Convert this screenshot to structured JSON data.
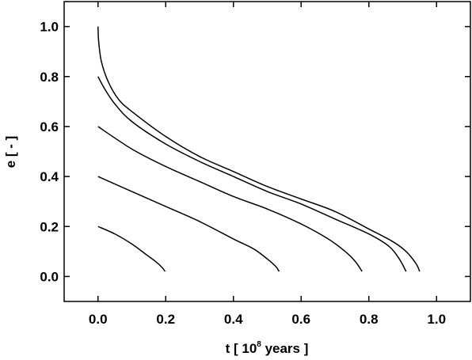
{
  "chart_data": {
    "type": "line",
    "title": "",
    "xlabel": {
      "prefix": "t [ 10",
      "sup": "8",
      "suffix": " years ]"
    },
    "ylabel": "e [ - ]",
    "xlim": [
      -0.1,
      1.1
    ],
    "ylim": [
      -0.1,
      1.1
    ],
    "xticks": [
      0.0,
      0.2,
      0.4,
      0.6,
      0.8,
      1.0
    ],
    "yticks": [
      0.0,
      0.2,
      0.4,
      0.6,
      0.8,
      1.0
    ],
    "xtick_labels": [
      "0.0",
      "0.2",
      "0.4",
      "0.6",
      "0.8",
      "1.0"
    ],
    "ytick_labels": [
      "0.0",
      "0.2",
      "0.4",
      "0.6",
      "0.8",
      "1.0"
    ],
    "grid": false,
    "legend": "none",
    "line_color": "#000000",
    "series": [
      {
        "x": [
          0.0,
          0.05,
          0.1,
          0.14,
          0.17,
          0.19,
          0.198
        ],
        "y": [
          0.2,
          0.17,
          0.13,
          0.09,
          0.06,
          0.035,
          0.02
        ]
      },
      {
        "x": [
          0.0,
          0.1,
          0.2,
          0.3,
          0.4,
          0.46,
          0.5,
          0.525,
          0.535
        ],
        "y": [
          0.4,
          0.34,
          0.28,
          0.22,
          0.15,
          0.11,
          0.07,
          0.04,
          0.02
        ]
      },
      {
        "x": [
          0.0,
          0.1,
          0.2,
          0.3,
          0.4,
          0.5,
          0.6,
          0.68,
          0.73,
          0.76,
          0.78
        ],
        "y": [
          0.6,
          0.51,
          0.44,
          0.38,
          0.32,
          0.27,
          0.21,
          0.15,
          0.1,
          0.06,
          0.02
        ]
      },
      {
        "x": [
          0.0,
          0.02,
          0.05,
          0.1,
          0.2,
          0.3,
          0.4,
          0.5,
          0.6,
          0.7,
          0.8,
          0.86,
          0.89,
          0.91
        ],
        "y": [
          0.8,
          0.75,
          0.69,
          0.62,
          0.53,
          0.46,
          0.4,
          0.34,
          0.29,
          0.23,
          0.17,
          0.12,
          0.07,
          0.02
        ]
      },
      {
        "x": [
          0.0,
          0.002,
          0.01,
          0.03,
          0.06,
          0.1,
          0.2,
          0.3,
          0.4,
          0.5,
          0.6,
          0.7,
          0.8,
          0.87,
          0.91,
          0.94,
          0.95
        ],
        "y": [
          1.0,
          0.94,
          0.86,
          0.78,
          0.71,
          0.66,
          0.56,
          0.48,
          0.42,
          0.36,
          0.31,
          0.26,
          0.19,
          0.14,
          0.1,
          0.05,
          0.02
        ]
      }
    ]
  }
}
